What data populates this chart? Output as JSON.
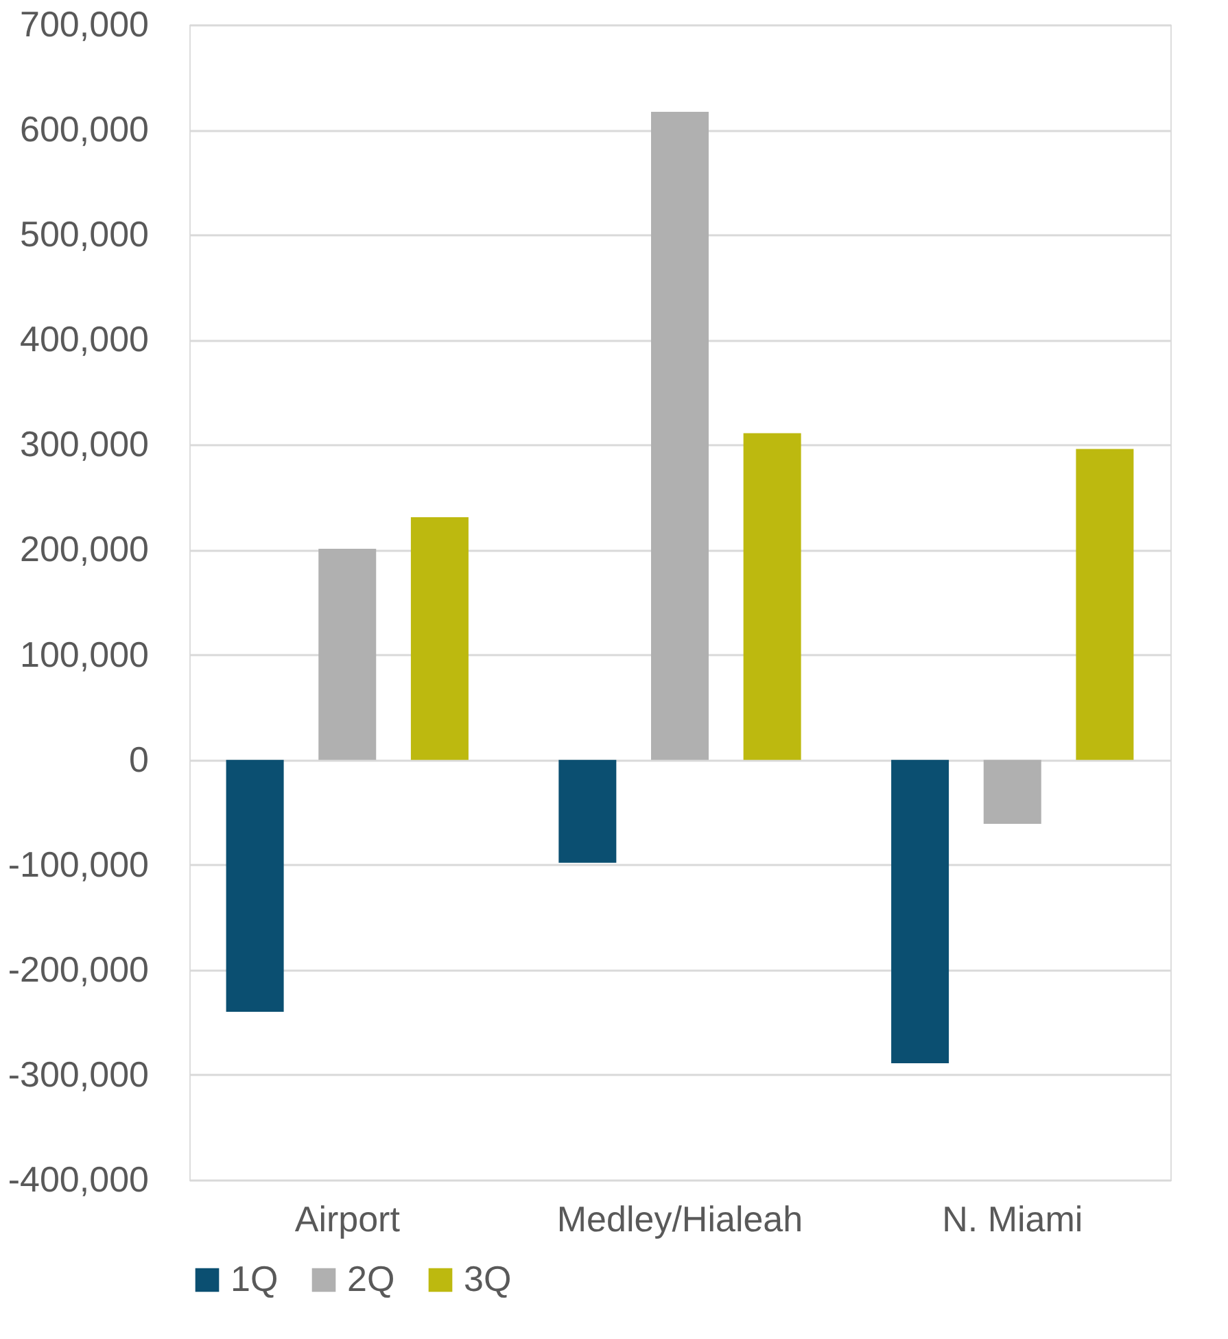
{
  "chart_data": {
    "type": "bar",
    "categories": [
      "Airport",
      "Medley/Hialeah",
      "N. Miami"
    ],
    "series": [
      {
        "name": "1Q",
        "color": "#0b4f71",
        "values": [
          -240000,
          -98000,
          -289000
        ]
      },
      {
        "name": "2Q",
        "color": "#b0b0b0",
        "values": [
          201000,
          617000,
          -61000
        ]
      },
      {
        "name": "3Q",
        "color": "#bdb90f",
        "values": [
          231000,
          311000,
          296000
        ]
      }
    ],
    "ylim": [
      -400000,
      700000
    ],
    "yticks": [
      {
        "value": -400000,
        "label": "-400,000"
      },
      {
        "value": -300000,
        "label": "-300,000"
      },
      {
        "value": -200000,
        "label": "-200,000"
      },
      {
        "value": -100000,
        "label": "-100,000"
      },
      {
        "value": 0,
        "label": "0"
      },
      {
        "value": 100000,
        "label": "100,000"
      },
      {
        "value": 200000,
        "label": "200,000"
      },
      {
        "value": 300000,
        "label": "300,000"
      },
      {
        "value": 400000,
        "label": "400,000"
      },
      {
        "value": 500000,
        "label": "500,000"
      },
      {
        "value": 600000,
        "label": "600,000"
      },
      {
        "value": 700000,
        "label": "700,000"
      }
    ],
    "grid": "y",
    "legend": "bottom"
  }
}
